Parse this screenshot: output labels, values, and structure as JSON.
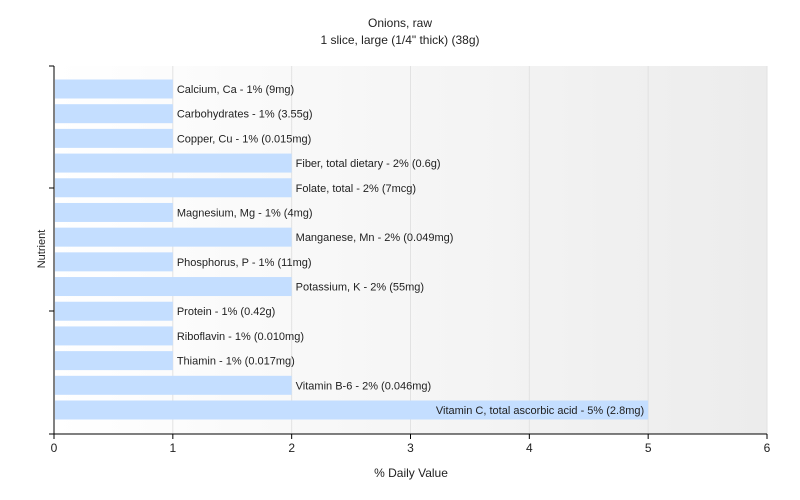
{
  "chart_data": {
    "type": "bar",
    "orientation": "horizontal",
    "title": "Onions, raw",
    "subtitle": "1 slice, large (1/4\" thick) (38g)",
    "xlabel": "% Daily Value",
    "ylabel": "Nutrient",
    "xlim": [
      0,
      6
    ],
    "xticks": [
      "0",
      "1",
      "2",
      "3",
      "4",
      "5",
      "6"
    ],
    "grid": true,
    "legend": "none",
    "bar_color": "#c4deff",
    "categories": [
      "Calcium, Ca",
      "Carbohydrates",
      "Copper, Cu",
      "Fiber, total dietary",
      "Folate, total",
      "Magnesium, Mg",
      "Manganese, Mn",
      "Phosphorus, P",
      "Potassium, K",
      "Protein",
      "Riboflavin",
      "Thiamin",
      "Vitamin B-6",
      "Vitamin C, total ascorbic acid"
    ],
    "values": [
      1,
      1,
      1,
      2,
      2,
      1,
      2,
      1,
      2,
      1,
      1,
      1,
      2,
      5
    ],
    "data_labels": [
      "Calcium, Ca - 1% (9mg)",
      "Carbohydrates - 1% (3.55g)",
      "Copper, Cu - 1% (0.015mg)",
      "Fiber, total dietary - 2% (0.6g)",
      "Folate, total - 2% (7mcg)",
      "Magnesium, Mg - 1% (4mg)",
      "Manganese, Mn - 2% (0.049mg)",
      "Phosphorus, P - 1% (11mg)",
      "Potassium, K - 2% (55mg)",
      "Protein - 1% (0.42g)",
      "Riboflavin - 1% (0.010mg)",
      "Thiamin - 1% (0.017mg)",
      "Vitamin B-6 - 2% (0.046mg)",
      "Vitamin C, total ascorbic acid - 5% (2.8mg)"
    ]
  }
}
